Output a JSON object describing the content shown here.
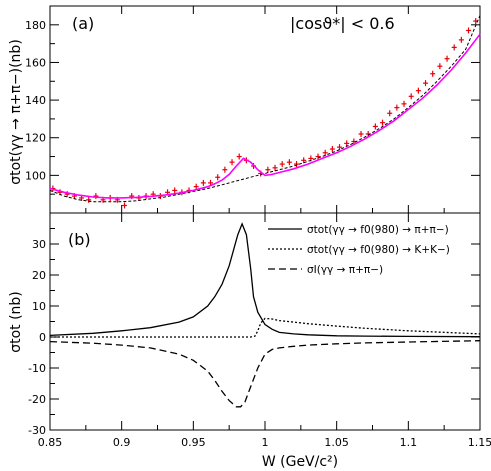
{
  "chart_data": [
    {
      "type": "scatter",
      "panel_label": "(a)",
      "annotation": "|cosϑ*| < 0.6",
      "ylabel": "σtot(γγ → π+π−)(nb)",
      "xlim": [
        0.85,
        1.15
      ],
      "ylim": [
        80,
        190
      ],
      "yticks": [
        {
          "v": 100,
          "l": "100"
        },
        {
          "v": 120,
          "l": "120"
        },
        {
          "v": 140,
          "l": "140"
        },
        {
          "v": 160,
          "l": "160"
        },
        {
          "v": 180,
          "l": "180"
        }
      ],
      "colors": {
        "data": "#e8000b",
        "fit": "#ff00ff",
        "background": "#000000"
      },
      "series": [
        {
          "kind": "data",
          "x": [
            0.852,
            0.857,
            0.862,
            0.867,
            0.872,
            0.877,
            0.882,
            0.887,
            0.892,
            0.897,
            0.902,
            0.907,
            0.912,
            0.917,
            0.922,
            0.927,
            0.932,
            0.937,
            0.942,
            0.947,
            0.952,
            0.957,
            0.962,
            0.967,
            0.972,
            0.977,
            0.982,
            0.987,
            0.992,
            0.997,
            1.002,
            1.007,
            1.012,
            1.017,
            1.022,
            1.027,
            1.032,
            1.037,
            1.042,
            1.047,
            1.052,
            1.057,
            1.062,
            1.067,
            1.072,
            1.077,
            1.082,
            1.087,
            1.092,
            1.097,
            1.102,
            1.107,
            1.112,
            1.117,
            1.122,
            1.127,
            1.132,
            1.137,
            1.142,
            1.147
          ],
          "y": [
            93,
            91,
            90,
            89,
            88,
            87,
            89,
            87,
            88,
            87,
            84,
            89,
            88,
            89,
            90,
            89,
            91,
            92,
            91,
            92,
            94,
            96,
            96,
            99,
            103,
            107,
            110,
            108,
            105,
            101,
            103,
            104,
            106,
            107,
            106,
            108,
            109,
            110,
            112,
            114,
            115,
            117,
            118,
            122,
            122,
            126,
            128,
            133,
            136,
            138,
            142,
            145,
            149,
            154,
            158,
            162,
            168,
            172,
            177,
            182
          ]
        },
        {
          "kind": "fit",
          "x": [
            0.85,
            0.86,
            0.87,
            0.88,
            0.89,
            0.9,
            0.91,
            0.92,
            0.93,
            0.94,
            0.95,
            0.96,
            0.965,
            0.97,
            0.975,
            0.98,
            0.985,
            0.99,
            0.995,
            1.0,
            1.005,
            1.01,
            1.02,
            1.03,
            1.04,
            1.05,
            1.06,
            1.07,
            1.08,
            1.09,
            1.1,
            1.11,
            1.12,
            1.13,
            1.14,
            1.15
          ],
          "y": [
            93,
            91,
            89.5,
            88.5,
            88,
            88,
            88.3,
            88.8,
            89.5,
            90.5,
            92,
            94,
            95.5,
            97.5,
            100.5,
            105,
            109,
            107,
            103,
            100,
            100.5,
            101.5,
            103.5,
            106,
            109,
            112,
            115.5,
            119.5,
            124,
            129,
            135,
            141,
            148,
            156,
            165,
            175
          ]
        },
        {
          "kind": "background",
          "x": [
            0.85,
            0.86,
            0.87,
            0.88,
            0.89,
            0.9,
            0.91,
            0.92,
            0.93,
            0.94,
            0.95,
            0.96,
            0.97,
            0.98,
            0.99,
            1.0,
            1.01,
            1.02,
            1.03,
            1.04,
            1.05,
            1.06,
            1.07,
            1.08,
            1.09,
            1.1,
            1.11,
            1.12,
            1.13,
            1.14,
            1.15
          ],
          "y": [
            92,
            89,
            87,
            86,
            86,
            86,
            86.5,
            87.5,
            88.5,
            90,
            91.5,
            93,
            95,
            97,
            99,
            101,
            103,
            105,
            107.5,
            110,
            113,
            116.5,
            120.5,
            125,
            130,
            136,
            142.5,
            150,
            158,
            167,
            185
          ]
        }
      ]
    },
    {
      "type": "line",
      "panel_label": "(b)",
      "xlabel": "W (GeV/c²)",
      "ylabel": "σtot (nb)",
      "xlim": [
        0.85,
        1.15
      ],
      "ylim": [
        -30,
        40
      ],
      "xticks": [
        {
          "v": 0.85,
          "l": "0.85"
        },
        {
          "v": 0.9,
          "l": "0.9"
        },
        {
          "v": 0.95,
          "l": "0.95"
        },
        {
          "v": 1.0,
          "l": "1"
        },
        {
          "v": 1.05,
          "l": "1.05"
        },
        {
          "v": 1.1,
          "l": "1.1"
        },
        {
          "v": 1.15,
          "l": "1.15"
        }
      ],
      "yticks": [
        {
          "v": -30,
          "l": "-30"
        },
        {
          "v": -20,
          "l": "-20"
        },
        {
          "v": -10,
          "l": "-10"
        },
        {
          "v": 0,
          "l": "0"
        },
        {
          "v": 10,
          "l": "10"
        },
        {
          "v": 20,
          "l": "20"
        },
        {
          "v": 30,
          "l": "30"
        }
      ],
      "legend_position": "top-right",
      "series": [
        {
          "name": "σtot(γγ → f0(980) → π+π−)",
          "style": "solid",
          "x": [
            0.85,
            0.88,
            0.9,
            0.92,
            0.94,
            0.95,
            0.96,
            0.965,
            0.97,
            0.975,
            0.978,
            0.981,
            0.984,
            0.987,
            0.99,
            0.992,
            0.995,
            1.0,
            1.005,
            1.01,
            1.02,
            1.03,
            1.05,
            1.07,
            1.1,
            1.15
          ],
          "y": [
            0.5,
            1.2,
            2,
            3,
            4.8,
            6.5,
            10,
            13,
            17,
            23,
            28,
            33,
            36.5,
            33,
            22,
            13,
            8,
            4,
            2.5,
            1.5,
            1,
            0.7,
            0.4,
            0.3,
            0.2,
            0.1
          ]
        },
        {
          "name": "σtot(γγ → f0(980) → K+K−)",
          "style": "dotted",
          "x": [
            0.85,
            0.9,
            0.95,
            0.98,
            0.99,
            0.993,
            0.995,
            0.997,
            1.0,
            1.005,
            1.01,
            1.02,
            1.03,
            1.05,
            1.07,
            1.1,
            1.15
          ],
          "y": [
            0,
            0,
            0,
            0,
            0,
            0.3,
            2,
            4.5,
            6,
            5.8,
            5.3,
            4.8,
            4.3,
            3.5,
            2.8,
            2,
            1
          ]
        },
        {
          "name": "σI(γγ → π+π−)",
          "style": "dashed",
          "x": [
            0.85,
            0.88,
            0.9,
            0.92,
            0.94,
            0.95,
            0.96,
            0.965,
            0.97,
            0.975,
            0.98,
            0.983,
            0.986,
            0.99,
            0.995,
            1.0,
            1.005,
            1.01,
            1.02,
            1.03,
            1.05,
            1.07,
            1.1,
            1.15
          ],
          "y": [
            -1.5,
            -2,
            -2.6,
            -3.5,
            -5.5,
            -7.5,
            -11,
            -14,
            -17.5,
            -20.5,
            -22.5,
            -22.5,
            -21,
            -16,
            -10,
            -5.5,
            -4,
            -3.5,
            -3,
            -2.6,
            -2.2,
            -1.9,
            -1.6,
            -1.2
          ]
        }
      ]
    }
  ]
}
